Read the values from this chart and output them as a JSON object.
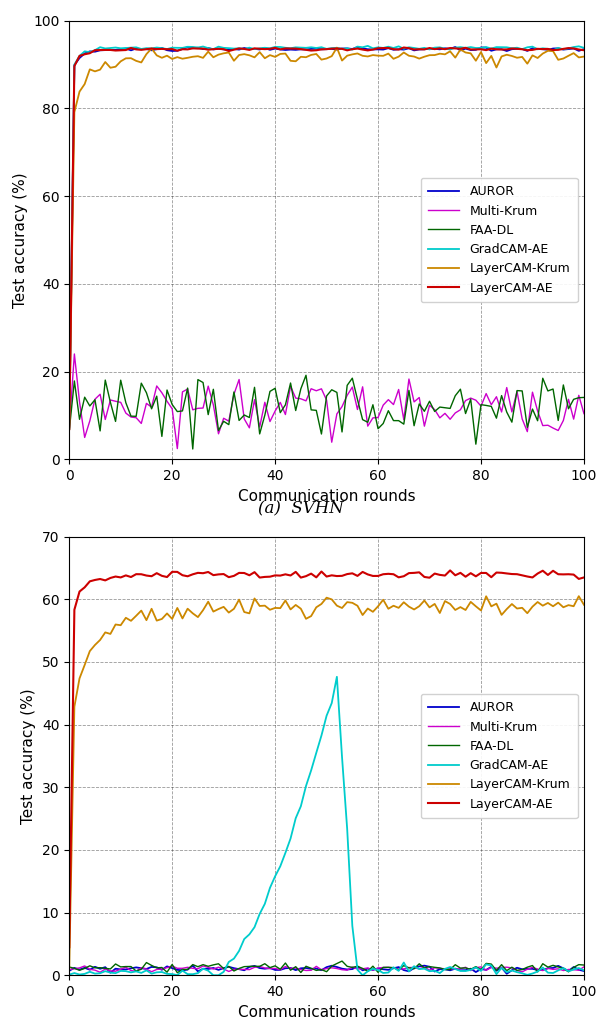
{
  "colors": {
    "AUROR": "#0000cc",
    "Multi-Krum": "#cc00cc",
    "FAA-DL": "#006600",
    "GradCAM-AE": "#00cccc",
    "LayerCAM-Krum": "#cc8800",
    "LayerCAM-AE": "#cc0000"
  },
  "legend_labels": [
    "AUROR",
    "Multi-Krum",
    "FAA-DL",
    "GradCAM-AE",
    "LayerCAM-Krum",
    "LayerCAM-AE"
  ],
  "xlabel": "Communication rounds",
  "ylabel": "Test accuracy (%)",
  "caption_a": "(a)  SVHN",
  "subplot_a": {
    "ylim": [
      0,
      100
    ],
    "yticks": [
      0,
      20,
      40,
      60,
      80,
      100
    ],
    "xlim": [
      0,
      100
    ],
    "xticks": [
      0,
      20,
      40,
      60,
      80,
      100
    ]
  },
  "subplot_b": {
    "ylim": [
      0,
      70
    ],
    "yticks": [
      0,
      10,
      20,
      30,
      40,
      50,
      60,
      70
    ],
    "xlim": [
      0,
      100
    ],
    "xticks": [
      0,
      20,
      40,
      60,
      80,
      100
    ]
  }
}
